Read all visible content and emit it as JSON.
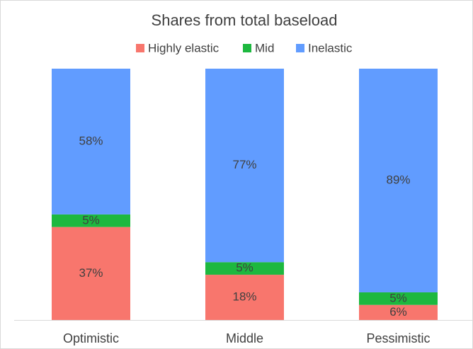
{
  "chart_data": {
    "type": "stacked-bar",
    "title": "Shares from total baseload",
    "categories": [
      "Optimistic",
      "Middle",
      "Pessimistic"
    ],
    "series": [
      {
        "name": "Highly elastic",
        "color": "#f8766d",
        "values": [
          37,
          18,
          6
        ],
        "value_labels": [
          "37%",
          "18%",
          "6%"
        ]
      },
      {
        "name": "Mid",
        "color": "#1db83f",
        "values": [
          5,
          5,
          5
        ],
        "value_labels": [
          "5%",
          "5%",
          "5%"
        ]
      },
      {
        "name": "Inelastic",
        "color": "#619cff",
        "values": [
          58,
          77,
          89
        ],
        "value_labels": [
          "58%",
          "77%",
          "89%"
        ]
      }
    ],
    "ylim": [
      0,
      100
    ]
  }
}
